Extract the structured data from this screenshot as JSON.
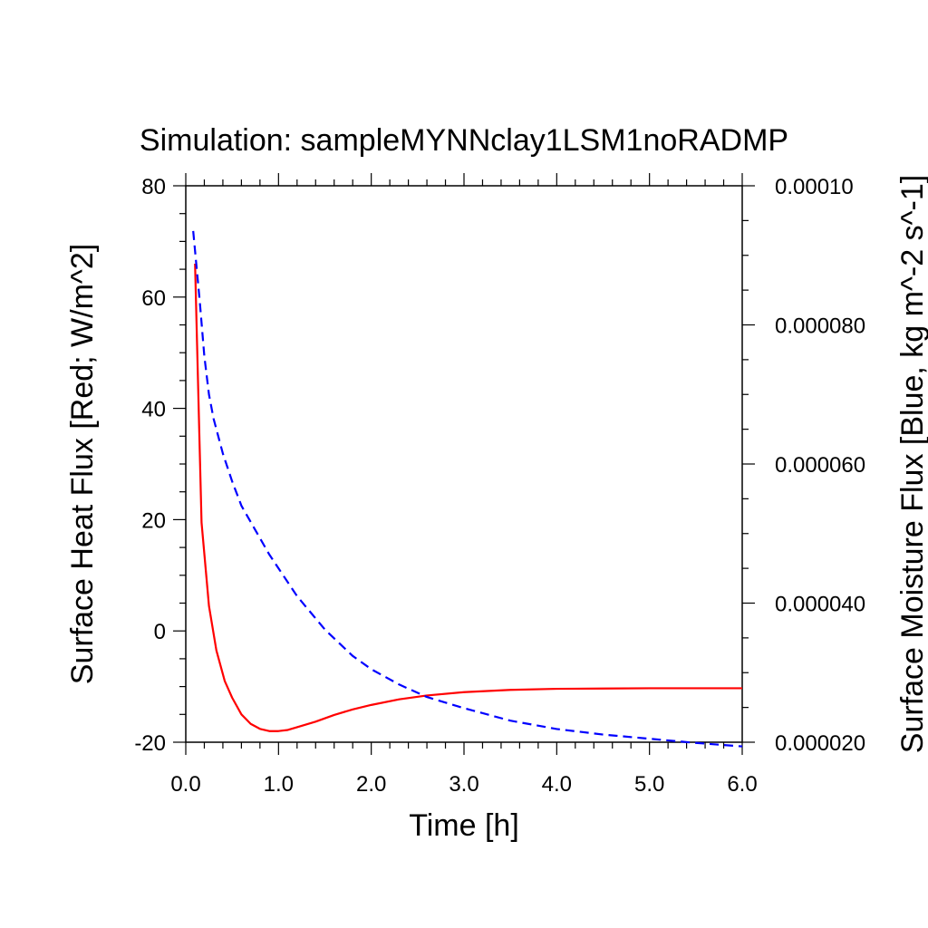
{
  "chart_data": {
    "type": "line",
    "title": "Simulation: sampleMYNNclay1LSM1noRADMP",
    "xlabel": "Time [h]",
    "ylabel_left": "Surface Heat Flux [Red; W/m^2]",
    "ylabel_right": "Surface Moisture Flux [Blue, kg m^-2 s^-1]",
    "xlim": [
      0,
      6
    ],
    "ylim_left": [
      -20,
      80
    ],
    "ylim_right": [
      2e-05,
      0.0001
    ],
    "x_ticks": [
      "0.0",
      "1.0",
      "2.0",
      "3.0",
      "4.0",
      "5.0",
      "6.0"
    ],
    "x_tick_values": [
      0,
      1,
      2,
      3,
      4,
      5,
      6
    ],
    "y_left_ticks": [
      "-20",
      "0",
      "20",
      "40",
      "60",
      "80"
    ],
    "y_left_tick_values": [
      -20,
      0,
      20,
      40,
      60,
      80
    ],
    "y_right_ticks": [
      "0.000020",
      "0.000040",
      "0.000060",
      "0.000080",
      "0.00010"
    ],
    "y_right_tick_values": [
      2e-05,
      4e-05,
      6e-05,
      8e-05,
      0.0001
    ],
    "grid": false,
    "series": [
      {
        "axis": "left",
        "color": "#ff0000",
        "dash": "solid",
        "x": [
          0.1,
          0.17,
          0.25,
          0.33,
          0.42,
          0.5,
          0.6,
          0.7,
          0.8,
          0.9,
          1.0,
          1.1,
          1.2,
          1.4,
          1.6,
          1.8,
          2.0,
          2.3,
          2.6,
          3.0,
          3.5,
          4.0,
          4.5,
          5.0,
          5.5,
          6.0
        ],
        "values": [
          66,
          19.5,
          4.5,
          -3.5,
          -9,
          -12,
          -15,
          -16.7,
          -17.6,
          -18,
          -18,
          -17.8,
          -17.3,
          -16.3,
          -15.1,
          -14.1,
          -13.3,
          -12.3,
          -11.6,
          -11,
          -10.6,
          -10.4,
          -10.35,
          -10.3,
          -10.3,
          -10.3
        ]
      },
      {
        "axis": "right",
        "color": "#0000ff",
        "dash": "dashed",
        "x": [
          0.08,
          0.15,
          0.2,
          0.25,
          0.3,
          0.4,
          0.5,
          0.6,
          0.75,
          0.9,
          1.0,
          1.2,
          1.5,
          1.8,
          2.0,
          2.3,
          2.6,
          3.0,
          3.5,
          4.0,
          4.5,
          5.0,
          5.5,
          6.0
        ],
        "values": [
          9.35e-05,
          8.35e-05,
          7.55e-05,
          7e-05,
          6.65e-05,
          6.15e-05,
          5.75e-05,
          5.4e-05,
          5.05e-05,
          4.7e-05,
          4.5e-05,
          4.1e-05,
          3.62e-05,
          3.24e-05,
          3.05e-05,
          2.83e-05,
          2.65e-05,
          2.49e-05,
          2.31e-05,
          2.19e-05,
          2.11e-05,
          2.05e-05,
          1.99e-05,
          1.94e-05
        ]
      }
    ]
  }
}
